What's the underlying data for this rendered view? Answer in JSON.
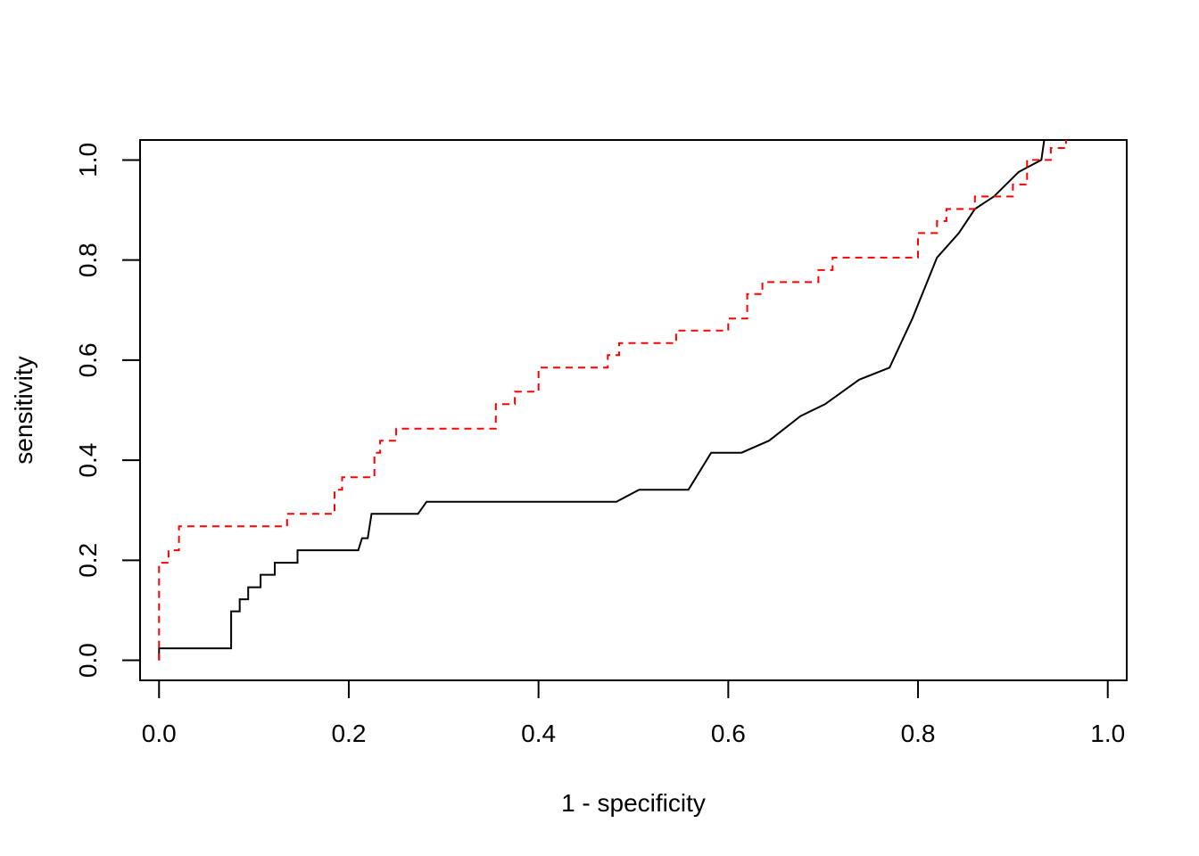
{
  "chart_data": {
    "type": "line",
    "title": "",
    "xlabel": "1 - specificity",
    "ylabel": "sensitivity",
    "xlim": [
      -0.02,
      1.02
    ],
    "ylim": [
      -0.04,
      1.04
    ],
    "x_ticks": [
      0.0,
      0.2,
      0.4,
      0.6,
      0.8,
      1.0
    ],
    "x_tick_labels": [
      "0.0",
      "0.2",
      "0.4",
      "0.6",
      "0.8",
      "1.0"
    ],
    "y_ticks": [
      0.0,
      0.2,
      0.4,
      0.6,
      0.8,
      1.0
    ],
    "y_tick_labels": [
      "0.0",
      "0.2",
      "0.4",
      "0.6",
      "0.8",
      "1.0"
    ],
    "grid": false,
    "legend": "none",
    "series": [
      {
        "color": "#000000",
        "style": "solid",
        "points": [
          [
            0.0,
            0.0
          ],
          [
            0.0,
            0.024
          ],
          [
            0.076,
            0.024
          ],
          [
            0.076,
            0.098
          ],
          [
            0.085,
            0.098
          ],
          [
            0.085,
            0.122
          ],
          [
            0.094,
            0.122
          ],
          [
            0.094,
            0.146
          ],
          [
            0.107,
            0.146
          ],
          [
            0.107,
            0.171
          ],
          [
            0.122,
            0.171
          ],
          [
            0.122,
            0.195
          ],
          [
            0.146,
            0.195
          ],
          [
            0.146,
            0.22
          ],
          [
            0.21,
            0.22
          ],
          [
            0.214,
            0.244
          ],
          [
            0.22,
            0.244
          ],
          [
            0.224,
            0.293
          ],
          [
            0.273,
            0.293
          ],
          [
            0.282,
            0.317
          ],
          [
            0.482,
            0.317
          ],
          [
            0.506,
            0.341
          ],
          [
            0.558,
            0.341
          ],
          [
            0.582,
            0.415
          ],
          [
            0.614,
            0.415
          ],
          [
            0.643,
            0.439
          ],
          [
            0.676,
            0.488
          ],
          [
            0.702,
            0.512
          ],
          [
            0.738,
            0.561
          ],
          [
            0.77,
            0.585
          ],
          [
            0.794,
            0.683
          ],
          [
            0.82,
            0.805
          ],
          [
            0.843,
            0.854
          ],
          [
            0.86,
            0.902
          ],
          [
            0.88,
            0.927
          ],
          [
            0.906,
            0.976
          ],
          [
            0.93,
            1.0
          ],
          [
            0.933,
            1.04
          ]
        ]
      },
      {
        "color": "#ff0000",
        "style": "dashed",
        "points": [
          [
            0.0,
            0.0
          ],
          [
            0.0,
            0.195
          ],
          [
            0.01,
            0.195
          ],
          [
            0.01,
            0.22
          ],
          [
            0.021,
            0.22
          ],
          [
            0.021,
            0.268
          ],
          [
            0.135,
            0.268
          ],
          [
            0.135,
            0.293
          ],
          [
            0.185,
            0.293
          ],
          [
            0.185,
            0.341
          ],
          [
            0.193,
            0.341
          ],
          [
            0.193,
            0.366
          ],
          [
            0.227,
            0.366
          ],
          [
            0.227,
            0.415
          ],
          [
            0.233,
            0.415
          ],
          [
            0.233,
            0.439
          ],
          [
            0.25,
            0.439
          ],
          [
            0.25,
            0.463
          ],
          [
            0.355,
            0.463
          ],
          [
            0.355,
            0.512
          ],
          [
            0.375,
            0.512
          ],
          [
            0.375,
            0.537
          ],
          [
            0.4,
            0.537
          ],
          [
            0.4,
            0.585
          ],
          [
            0.473,
            0.585
          ],
          [
            0.473,
            0.61
          ],
          [
            0.485,
            0.61
          ],
          [
            0.485,
            0.634
          ],
          [
            0.545,
            0.634
          ],
          [
            0.545,
            0.659
          ],
          [
            0.6,
            0.659
          ],
          [
            0.6,
            0.683
          ],
          [
            0.62,
            0.683
          ],
          [
            0.62,
            0.732
          ],
          [
            0.636,
            0.732
          ],
          [
            0.636,
            0.756
          ],
          [
            0.695,
            0.756
          ],
          [
            0.695,
            0.78
          ],
          [
            0.71,
            0.78
          ],
          [
            0.71,
            0.805
          ],
          [
            0.8,
            0.805
          ],
          [
            0.8,
            0.854
          ],
          [
            0.82,
            0.854
          ],
          [
            0.82,
            0.878
          ],
          [
            0.83,
            0.878
          ],
          [
            0.83,
            0.902
          ],
          [
            0.86,
            0.902
          ],
          [
            0.86,
            0.927
          ],
          [
            0.9,
            0.927
          ],
          [
            0.9,
            0.951
          ],
          [
            0.915,
            0.951
          ],
          [
            0.915,
            1.0
          ],
          [
            0.94,
            1.0
          ],
          [
            0.94,
            1.024
          ],
          [
            0.956,
            1.024
          ],
          [
            0.956,
            1.04
          ]
        ]
      }
    ]
  }
}
